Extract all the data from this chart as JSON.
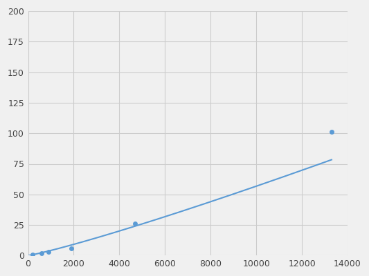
{
  "x": [
    200,
    600,
    900,
    1900,
    4700,
    13300
  ],
  "y": [
    1,
    2,
    3,
    6,
    26,
    101
  ],
  "line_color": "#5b9bd5",
  "marker_color": "#5b9bd5",
  "marker_size": 5,
  "line_width": 1.5,
  "xlim": [
    0,
    14000
  ],
  "ylim": [
    0,
    200
  ],
  "xticks": [
    0,
    2000,
    4000,
    6000,
    8000,
    10000,
    12000,
    14000
  ],
  "yticks": [
    0,
    25,
    50,
    75,
    100,
    125,
    150,
    175,
    200
  ],
  "grid_color": "#cccccc",
  "bg_color": "#f0f0f0",
  "fig_bg_color": "#f0f0f0"
}
